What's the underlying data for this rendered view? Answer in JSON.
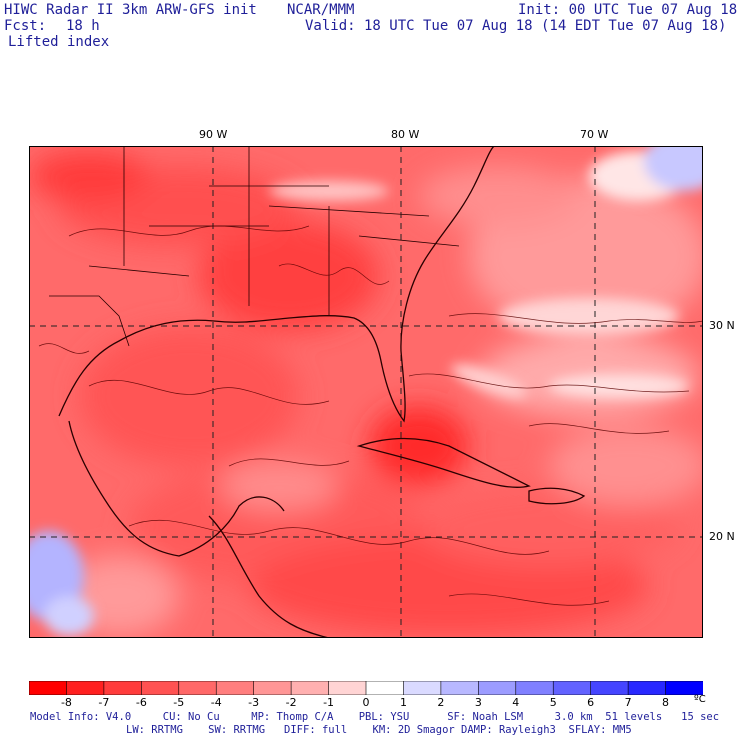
{
  "header": {
    "model": "HIWC Radar II 3km ARW-GFS init",
    "org": "NCAR/MMM",
    "init": "Init: 00 UTC Tue 07 Aug 18",
    "fcst_label": "Fcst:",
    "fcst_value": "18 h",
    "valid": "Valid: 18 UTC Tue 07 Aug 18 (14 EDT Tue 07 Aug 18)",
    "field": "Lifted index"
  },
  "map": {
    "lon_labels": [
      "90 W",
      "80 W",
      "70 W"
    ],
    "lat_labels": [
      "30 N",
      "20 N"
    ]
  },
  "colorbar": {
    "ticks": [
      "-8",
      "-7",
      "-6",
      "-5",
      "-4",
      "-3",
      "-2",
      "-1",
      "0",
      "1",
      "2",
      "3",
      "4",
      "5",
      "6",
      "7",
      "8"
    ],
    "unit": "ºC",
    "colors": [
      "#ff0000",
      "#ff2020",
      "#ff3c3c",
      "#ff5252",
      "#ff6868",
      "#ff7e7e",
      "#ff9696",
      "#ffb0b0",
      "#ffd4d4",
      "#ffffff",
      "#dadaff",
      "#b8b8ff",
      "#9c9cff",
      "#8080ff",
      "#6262ff",
      "#4545ff",
      "#2828ff",
      "#0000ff"
    ]
  },
  "footer": {
    "line1": "Model Info: V4.0     CU: No Cu     MP: Thomp C/A    PBL: YSU      SF: Noah LSM     3.0 km  51 levels   15 sec",
    "line2": "LW: RRTMG    SW: RRTMG   DIFF: full    KM: 2D Smagor DAMP: Rayleigh3  SFLAY: MM5"
  }
}
